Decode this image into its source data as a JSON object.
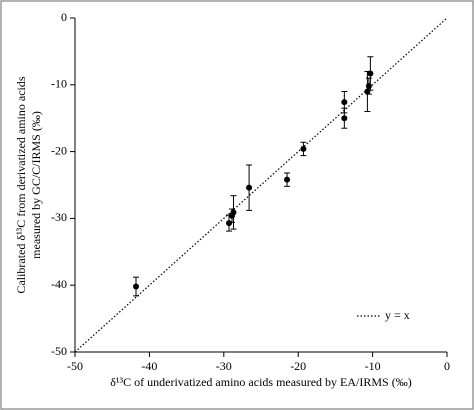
{
  "chart_data": {
    "type": "scatter",
    "xlabel": "δ¹³C of underivatized amino acids measured by EA/IRMS (‰)",
    "ylabel": [
      "Calibrated δ¹³C from derivatized amino acids",
      "measured by GC/C/IRMS (‰)"
    ],
    "xlim": [
      -50,
      0
    ],
    "ylim": [
      -50,
      0
    ],
    "xticks": [
      -50,
      -40,
      -30,
      -20,
      -10,
      0
    ],
    "yticks": [
      -50,
      -40,
      -30,
      -20,
      -10,
      0
    ],
    "series": [
      {
        "color": "#000000",
        "x": [
          -41.8,
          -29.3,
          -28.9,
          -28.7,
          -26.6,
          -21.5,
          -19.3,
          -13.8,
          -13.8,
          -10.7,
          -10.5,
          -10.3
        ],
        "values": [
          -40.2,
          -30.7,
          -29.6,
          -29.1,
          -25.4,
          -24.2,
          -19.6,
          -12.6,
          -15.0,
          -11.0,
          -10.2,
          -8.3
        ],
        "errors": [
          1.4,
          1.2,
          1.0,
          2.5,
          3.4,
          1.0,
          1.0,
          1.6,
          1.5,
          3.0,
          1.2,
          2.5
        ]
      }
    ],
    "reference_line": {
      "name": "y = x",
      "style": "dotted"
    },
    "legend": "lower right"
  }
}
